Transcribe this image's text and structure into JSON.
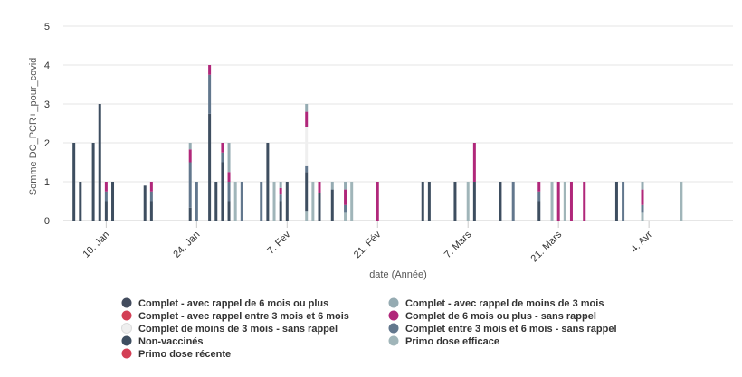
{
  "chart_data": {
    "type": "bar",
    "stacked": true,
    "ylabel": "Somme DC_PCR+_pour_covid",
    "xlabel": "date (Année)",
    "ylim": [
      0,
      5
    ],
    "yticks": [
      0,
      1,
      2,
      3,
      4,
      5
    ],
    "grid": true,
    "legend_position": "bottom",
    "x_range": [
      "2022-01-03",
      "2022-04-10"
    ],
    "xticks": [
      {
        "date": "2022-01-10",
        "label": "10. Jan"
      },
      {
        "date": "2022-01-24",
        "label": "24. Jan"
      },
      {
        "date": "2022-02-07",
        "label": "7. Fév"
      },
      {
        "date": "2022-02-21",
        "label": "21. Fév"
      },
      {
        "date": "2022-03-07",
        "label": "7. Mars"
      },
      {
        "date": "2022-03-21",
        "label": "21. Mars"
      },
      {
        "date": "2022-04-04",
        "label": "4. Avr"
      }
    ],
    "series": [
      {
        "name": "Complet - avec rappel de 6 mois ou plus",
        "color": "#434c5e"
      },
      {
        "name": "Complet - avec rappel de moins de 3 mois",
        "color": "#95abb2"
      },
      {
        "name": "Complet - avec rappel entre 3 mois et 6 mois",
        "color": "#d33f55"
      },
      {
        "name": "Complet de 6 mois ou plus - sans rappel",
        "color": "#b0277a"
      },
      {
        "name": "Complet de moins de 3 mois - sans rappel",
        "color": "#efefef"
      },
      {
        "name": "Complet entre 3 mois et 6 mois - sans rappel",
        "color": "#62778d"
      },
      {
        "name": "Non-vaccinés",
        "color": "#3e4e60"
      },
      {
        "name": "Primo dose efficace",
        "color": "#a0b5b9"
      },
      {
        "name": "Primo dose récente",
        "color": "#d33f55"
      }
    ],
    "points": [
      {
        "date": "2022-01-05",
        "segments": [
          {
            "series": 6,
            "value": 2
          }
        ]
      },
      {
        "date": "2022-01-06",
        "segments": [
          {
            "series": 6,
            "value": 1
          }
        ]
      },
      {
        "date": "2022-01-08",
        "segments": [
          {
            "series": 6,
            "value": 2
          }
        ]
      },
      {
        "date": "2022-01-09",
        "segments": [
          {
            "series": 6,
            "value": 3
          }
        ]
      },
      {
        "date": "2022-01-10",
        "segments": [
          {
            "series": 6,
            "value": 0.5
          },
          {
            "series": 5,
            "value": 0.25
          },
          {
            "series": 3,
            "value": 0.25
          }
        ]
      },
      {
        "date": "2022-01-11",
        "segments": [
          {
            "series": 6,
            "value": 1
          }
        ]
      },
      {
        "date": "2022-01-16",
        "segments": [
          {
            "series": 6,
            "value": 0.9
          }
        ]
      },
      {
        "date": "2022-01-17",
        "segments": [
          {
            "series": 6,
            "value": 0.5
          },
          {
            "series": 5,
            "value": 0.25
          },
          {
            "series": 3,
            "value": 0.25
          }
        ]
      },
      {
        "date": "2022-01-23",
        "segments": [
          {
            "series": 6,
            "value": 0.33
          },
          {
            "series": 5,
            "value": 1.17
          },
          {
            "series": 3,
            "value": 0.33
          },
          {
            "series": 1,
            "value": 0.17
          }
        ]
      },
      {
        "date": "2022-01-24",
        "segments": [
          {
            "series": 5,
            "value": 1
          }
        ]
      },
      {
        "date": "2022-01-26",
        "segments": [
          {
            "series": 6,
            "value": 2.75
          },
          {
            "series": 5,
            "value": 1
          },
          {
            "series": 3,
            "value": 0.25
          }
        ]
      },
      {
        "date": "2022-01-27",
        "segments": [
          {
            "series": 6,
            "value": 1
          }
        ]
      },
      {
        "date": "2022-01-28",
        "segments": [
          {
            "series": 6,
            "value": 1.5
          },
          {
            "series": 5,
            "value": 0.25
          },
          {
            "series": 3,
            "value": 0.25
          }
        ]
      },
      {
        "date": "2022-01-29",
        "segments": [
          {
            "series": 6,
            "value": 0.5
          },
          {
            "series": 5,
            "value": 0.5
          },
          {
            "series": 3,
            "value": 0.25
          },
          {
            "series": 1,
            "value": 0.75
          }
        ]
      },
      {
        "date": "2022-01-30",
        "segments": [
          {
            "series": 7,
            "value": 1
          }
        ]
      },
      {
        "date": "2022-01-31",
        "segments": [
          {
            "series": 5,
            "value": 1
          }
        ]
      },
      {
        "date": "2022-02-03",
        "segments": [
          {
            "series": 5,
            "value": 1
          }
        ]
      },
      {
        "date": "2022-02-04",
        "segments": [
          {
            "series": 6,
            "value": 2
          }
        ]
      },
      {
        "date": "2022-02-05",
        "segments": [
          {
            "series": 7,
            "value": 1
          }
        ]
      },
      {
        "date": "2022-02-06",
        "segments": [
          {
            "series": 6,
            "value": 0.5
          },
          {
            "series": 5,
            "value": 0.17
          },
          {
            "series": 3,
            "value": 0.17
          },
          {
            "series": 1,
            "value": 0.16
          }
        ]
      },
      {
        "date": "2022-02-07",
        "segments": [
          {
            "series": 6,
            "value": 1
          }
        ]
      },
      {
        "date": "2022-02-10",
        "segments": [
          {
            "series": 7,
            "value": 0.25
          },
          {
            "series": 6,
            "value": 1
          },
          {
            "series": 5,
            "value": 0.15
          },
          {
            "series": 4,
            "value": 1
          },
          {
            "series": 3,
            "value": 0.4
          },
          {
            "series": 1,
            "value": 0.2
          }
        ]
      },
      {
        "date": "2022-02-11",
        "segments": [
          {
            "series": 7,
            "value": 1
          }
        ]
      },
      {
        "date": "2022-02-12",
        "segments": [
          {
            "series": 6,
            "value": 0.7
          },
          {
            "series": 3,
            "value": 0.3
          }
        ]
      },
      {
        "date": "2022-02-14",
        "segments": [
          {
            "series": 6,
            "value": 0.8
          },
          {
            "series": 1,
            "value": 0.2
          }
        ]
      },
      {
        "date": "2022-02-16",
        "segments": [
          {
            "series": 7,
            "value": 0.2
          },
          {
            "series": 5,
            "value": 0.2
          },
          {
            "series": 3,
            "value": 0.4
          },
          {
            "series": 1,
            "value": 0.2
          }
        ]
      },
      {
        "date": "2022-02-17",
        "segments": [
          {
            "series": 7,
            "value": 1
          }
        ]
      },
      {
        "date": "2022-02-21",
        "segments": [
          {
            "series": 3,
            "value": 1
          }
        ]
      },
      {
        "date": "2022-02-28",
        "segments": [
          {
            "series": 6,
            "value": 1
          }
        ]
      },
      {
        "date": "2022-03-01",
        "segments": [
          {
            "series": 6,
            "value": 1
          }
        ]
      },
      {
        "date": "2022-03-05",
        "segments": [
          {
            "series": 6,
            "value": 1
          }
        ]
      },
      {
        "date": "2022-03-07",
        "segments": [
          {
            "series": 7,
            "value": 1
          }
        ]
      },
      {
        "date": "2022-03-08",
        "segments": [
          {
            "series": 6,
            "value": 1
          },
          {
            "series": 3,
            "value": 1
          }
        ]
      },
      {
        "date": "2022-03-12",
        "segments": [
          {
            "series": 6,
            "value": 1
          }
        ]
      },
      {
        "date": "2022-03-14",
        "segments": [
          {
            "series": 5,
            "value": 1
          }
        ]
      },
      {
        "date": "2022-03-18",
        "segments": [
          {
            "series": 6,
            "value": 0.5
          },
          {
            "series": 5,
            "value": 0.25
          },
          {
            "series": 3,
            "value": 0.25
          }
        ]
      },
      {
        "date": "2022-03-20",
        "segments": [
          {
            "series": 7,
            "value": 1
          }
        ]
      },
      {
        "date": "2022-03-21",
        "segments": [
          {
            "series": 3,
            "value": 1
          }
        ]
      },
      {
        "date": "2022-03-22",
        "segments": [
          {
            "series": 7,
            "value": 1
          }
        ]
      },
      {
        "date": "2022-03-23",
        "segments": [
          {
            "series": 3,
            "value": 1
          }
        ]
      },
      {
        "date": "2022-03-25",
        "segments": [
          {
            "series": 3,
            "value": 1
          }
        ]
      },
      {
        "date": "2022-03-30",
        "segments": [
          {
            "series": 6,
            "value": 1
          }
        ]
      },
      {
        "date": "2022-03-31",
        "segments": [
          {
            "series": 5,
            "value": 1
          }
        ]
      },
      {
        "date": "2022-04-03",
        "segments": [
          {
            "series": 7,
            "value": 0.2
          },
          {
            "series": 5,
            "value": 0.2
          },
          {
            "series": 3,
            "value": 0.4
          },
          {
            "series": 1,
            "value": 0.2
          }
        ]
      },
      {
        "date": "2022-04-09",
        "segments": [
          {
            "series": 7,
            "value": 1
          }
        ]
      }
    ]
  }
}
